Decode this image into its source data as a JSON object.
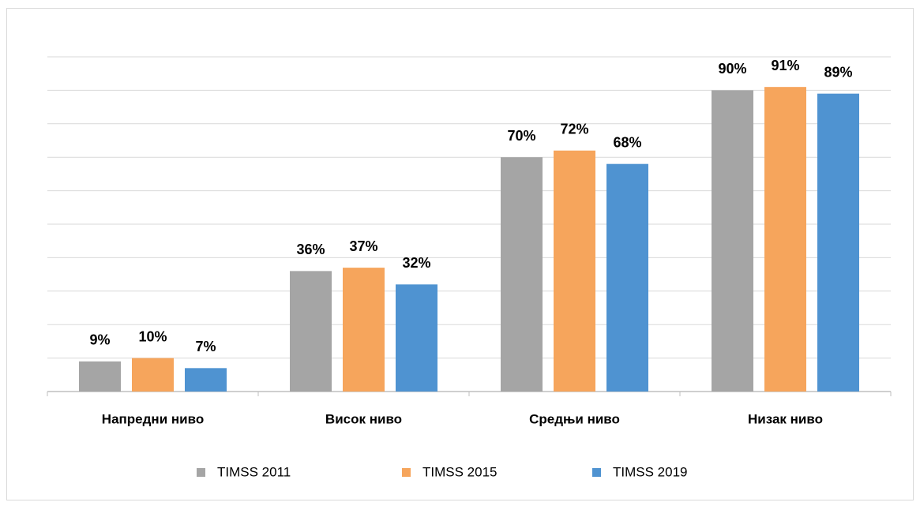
{
  "chart_data": {
    "type": "bar",
    "categories": [
      "Напредни ниво",
      "Висок ниво",
      "Средњи ниво",
      "Низак ниво"
    ],
    "series": [
      {
        "name": "TIMSS 2011",
        "color": "#a5a5a5",
        "values": [
          9,
          36,
          70,
          90
        ],
        "value_labels": [
          "9%",
          "36%",
          "70%",
          "90%"
        ]
      },
      {
        "name": "TIMSS 2015",
        "color": "#f6a55c",
        "values": [
          10,
          37,
          72,
          91
        ],
        "value_labels": [
          "10%",
          "37%",
          "72%",
          "91%"
        ]
      },
      {
        "name": "TIMSS 2019",
        "color": "#4f93d1",
        "values": [
          7,
          32,
          68,
          89
        ],
        "value_labels": [
          "7%",
          "32%",
          "68%",
          "89%"
        ]
      }
    ],
    "ylim": [
      0,
      100
    ],
    "yticks": [
      0,
      10,
      20,
      30,
      40,
      50,
      60,
      70,
      80,
      90,
      100
    ],
    "grid": true,
    "legend": "bottom"
  }
}
